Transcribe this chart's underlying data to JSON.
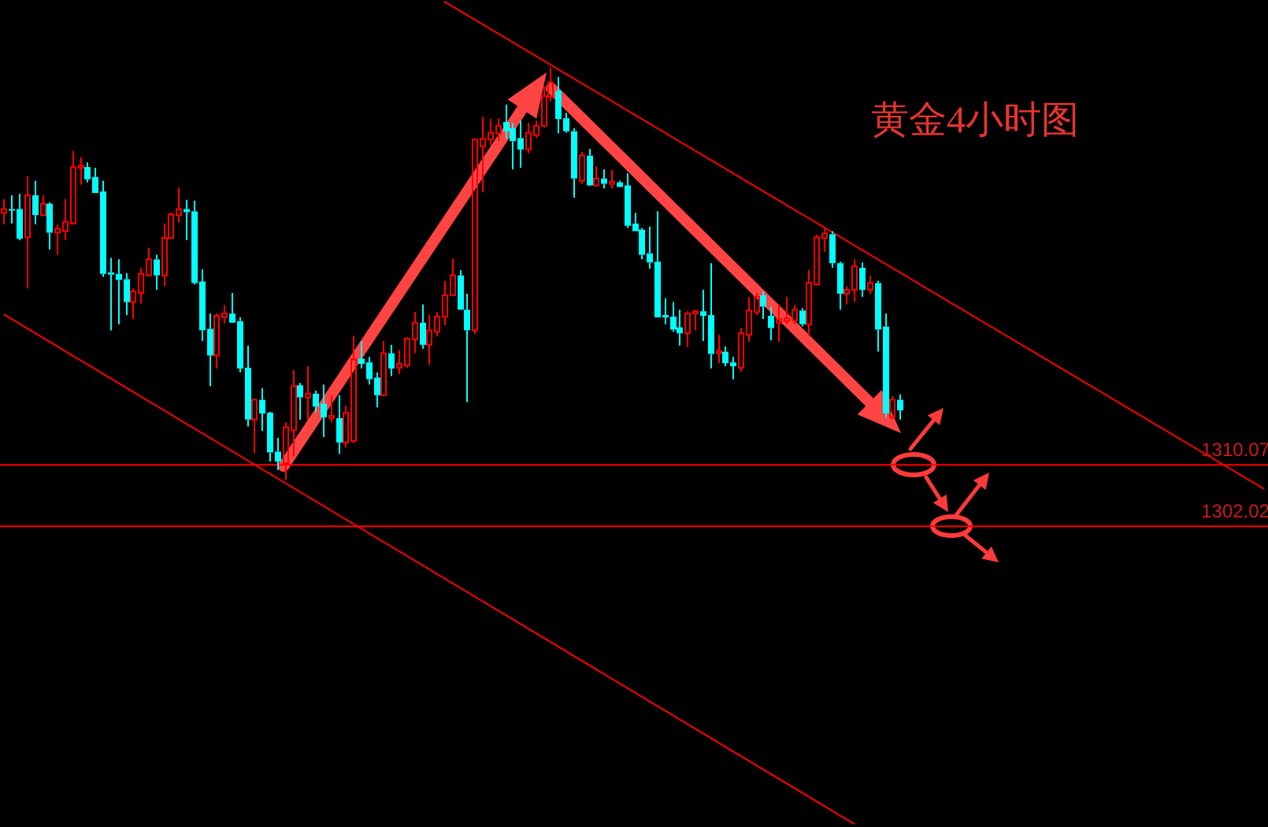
{
  "chart_data": {
    "type": "candlestick",
    "title": "黄金4小时图",
    "categories": [
      null,
      null,
      null,
      null,
      null,
      null,
      null,
      null,
      null,
      null,
      null,
      null,
      null,
      null,
      null,
      null,
      null,
      null,
      null,
      null,
      null,
      null,
      null,
      null,
      null,
      null,
      null,
      null,
      null,
      null,
      null,
      null,
      null,
      null,
      null,
      null,
      null,
      null,
      null,
      null,
      null,
      null,
      null,
      null,
      null,
      null,
      null,
      null,
      null,
      null,
      null,
      null,
      null,
      null,
      null,
      null,
      null,
      null,
      null,
      null,
      null,
      null,
      null,
      null,
      null,
      null,
      null,
      null,
      null,
      null,
      null,
      null,
      null,
      null,
      null,
      null,
      null,
      null,
      null,
      null,
      null,
      null,
      null,
      null,
      null,
      null,
      null,
      null,
      null,
      null,
      null,
      null,
      null,
      null,
      null,
      null,
      null,
      null,
      null,
      null,
      null,
      null,
      null,
      null,
      null,
      null,
      null,
      null,
      null,
      null,
      null,
      null,
      null,
      null,
      null,
      null,
      null,
      null,
      null,
      null,
      null,
      null,
      null,
      null,
      null,
      null,
      null,
      null,
      null,
      null,
      null,
      null,
      null,
      null,
      null,
      null,
      null,
      null,
      null,
      null,
      null,
      null,
      null,
      null,
      null,
      null,
      null,
      null,
      null,
      null,
      null,
      null,
      null,
      null,
      null,
      null,
      null,
      null,
      null,
      null,
      null,
      null,
      null,
      null,
      null,
      null,
      null
    ],
    "ohlc": [
      [
        1343.1,
        1344.9,
        1341.6,
        1343.6
      ],
      [
        1343.6,
        1345.4,
        1341.7,
        1343.5
      ],
      [
        1343.6,
        1345.6,
        1339.5,
        1339.7
      ],
      [
        1339.9,
        1347.9,
        1333.2,
        1345.4
      ],
      [
        1345.4,
        1347.3,
        1341.6,
        1342.8
      ],
      [
        1342.8,
        1345.4,
        1342.8,
        1344.3
      ],
      [
        1344.3,
        1344.5,
        1338.3,
        1340.5
      ],
      [
        1340.5,
        1341.6,
        1337.6,
        1341.0
      ],
      [
        1340.7,
        1344.9,
        1339.5,
        1341.9
      ],
      [
        1341.7,
        1351.2,
        1341.6,
        1349.1
      ],
      [
        1349.0,
        1350.4,
        1346.8,
        1349.3
      ],
      [
        1349.1,
        1349.7,
        1347.1,
        1347.5
      ],
      [
        1347.8,
        1349.0,
        1345.7,
        1345.7
      ],
      [
        1345.9,
        1347.3,
        1334.7,
        1335.1
      ],
      [
        1335.3,
        1337.2,
        1327.7,
        1335.0
      ],
      [
        1335.1,
        1337.0,
        1328.5,
        1334.3
      ],
      [
        1334.4,
        1335.2,
        1329.7,
        1331.4
      ],
      [
        1331.4,
        1333.2,
        1329.2,
        1332.8
      ],
      [
        1332.6,
        1335.9,
        1331.2,
        1335.1
      ],
      [
        1334.9,
        1338.5,
        1334.9,
        1337.0
      ],
      [
        1337.0,
        1337.6,
        1333.0,
        1334.9
      ],
      [
        1334.9,
        1341.7,
        1333.5,
        1339.8
      ],
      [
        1339.8,
        1343.1,
        1339.7,
        1342.9
      ],
      [
        1342.8,
        1346.4,
        1341.8,
        1343.6
      ],
      [
        1343.6,
        1344.8,
        1339.5,
        1343.2
      ],
      [
        1343.3,
        1344.7,
        1333.7,
        1333.9
      ],
      [
        1334.1,
        1335.7,
        1326.3,
        1327.7
      ],
      [
        1327.9,
        1329.9,
        1320.4,
        1324.4
      ],
      [
        1324.4,
        1329.9,
        1322.7,
        1329.6
      ],
      [
        1329.4,
        1331.0,
        1328.6,
        1329.9
      ],
      [
        1329.9,
        1332.6,
        1328.7,
        1328.7
      ],
      [
        1328.9,
        1329.4,
        1322.2,
        1322.7
      ],
      [
        1322.8,
        1325.7,
        1315.1,
        1316.0
      ],
      [
        1316.0,
        1318.7,
        1311.6,
        1318.6
      ],
      [
        1318.6,
        1320.1,
        1314.5,
        1316.8
      ],
      [
        1316.9,
        1317.0,
        1310.5,
        1311.7
      ],
      [
        1311.8,
        1313.6,
        1309.4,
        1310.5
      ],
      [
        1310.3,
        1315.6,
        1308.1,
        1315.0
      ],
      [
        1314.6,
        1322.5,
        1311.2,
        1320.4
      ],
      [
        1320.5,
        1320.8,
        1316.0,
        1318.9
      ],
      [
        1318.9,
        1323.0,
        1316.0,
        1319.4
      ],
      [
        1319.4,
        1319.8,
        1317.0,
        1317.7
      ],
      [
        1318.1,
        1320.6,
        1313.7,
        1316.3
      ],
      [
        1316.2,
        1319.1,
        1315.6,
        1316.5
      ],
      [
        1316.2,
        1319.2,
        1311.5,
        1313.0
      ],
      [
        1313.0,
        1317.8,
        1312.3,
        1316.9
      ],
      [
        1313.2,
        1327.0,
        1312.9,
        1323.9
      ],
      [
        1324.0,
        1326.3,
        1322.7,
        1323.3
      ],
      [
        1323.5,
        1324.2,
        1320.6,
        1321.3
      ],
      [
        1321.5,
        1322.2,
        1317.6,
        1319.2
      ],
      [
        1319.2,
        1326.3,
        1319.1,
        1324.7
      ],
      [
        1324.7,
        1325.8,
        1321.7,
        1322.7
      ],
      [
        1322.8,
        1325.1,
        1322.0,
        1323.3
      ],
      [
        1323.1,
        1326.8,
        1322.8,
        1326.6
      ],
      [
        1326.5,
        1330.1,
        1324.7,
        1328.7
      ],
      [
        1328.7,
        1331.1,
        1325.3,
        1325.8
      ],
      [
        1325.8,
        1329.7,
        1323.2,
        1327.7
      ],
      [
        1327.5,
        1330.1,
        1326.9,
        1329.5
      ],
      [
        1329.5,
        1334.2,
        1328.4,
        1332.3
      ],
      [
        1332.3,
        1337.1,
        1332.3,
        1334.9
      ],
      [
        1334.9,
        1335.6,
        1330.4,
        1330.4
      ],
      [
        1330.4,
        1332.5,
        1318.3,
        1327.7
      ],
      [
        1327.7,
        1352.8,
        1327.2,
        1352.7
      ],
      [
        1351.8,
        1355.7,
        1345.8,
        1352.8
      ],
      [
        1352.7,
        1355.4,
        1352.0,
        1353.6
      ],
      [
        1353.5,
        1355.5,
        1352.5,
        1354.5
      ],
      [
        1355.0,
        1357.3,
        1352.8,
        1353.8
      ],
      [
        1354.2,
        1354.9,
        1348.8,
        1352.5
      ],
      [
        1352.9,
        1355.2,
        1349.0,
        1351.4
      ],
      [
        1351.4,
        1354.9,
        1350.9,
        1353.6
      ],
      [
        1353.3,
        1355.2,
        1352.9,
        1354.5
      ],
      [
        1354.5,
        1359.7,
        1354.3,
        1358.4
      ],
      [
        1358.3,
        1362.1,
        1357.7,
        1360.2
      ],
      [
        1359.1,
        1360.9,
        1353.5,
        1355.4
      ],
      [
        1355.5,
        1356.2,
        1353.6,
        1353.8
      ],
      [
        1353.8,
        1354.2,
        1345.1,
        1347.6
      ],
      [
        1347.3,
        1351.1,
        1346.9,
        1350.6
      ],
      [
        1350.6,
        1351.5,
        1346.6,
        1346.7
      ],
      [
        1346.7,
        1349.2,
        1346.7,
        1347.6
      ],
      [
        1347.6,
        1348.8,
        1346.3,
        1346.9
      ],
      [
        1346.9,
        1348.7,
        1346.3,
        1347.2
      ],
      [
        1347.1,
        1347.3,
        1346.5,
        1346.5
      ],
      [
        1346.7,
        1348.3,
        1341.1,
        1341.4
      ],
      [
        1341.7,
        1343.1,
        1340.7,
        1340.7
      ],
      [
        1340.9,
        1341.1,
        1337.0,
        1337.6
      ],
      [
        1337.8,
        1341.3,
        1335.8,
        1336.6
      ],
      [
        1336.7,
        1343.3,
        1329.4,
        1329.4
      ],
      [
        1329.7,
        1331.9,
        1328.5,
        1329.4
      ],
      [
        1329.5,
        1331.4,
        1327.5,
        1327.8
      ],
      [
        1328.1,
        1330.4,
        1325.7,
        1327.3
      ],
      [
        1327.3,
        1330.2,
        1325.5,
        1329.9
      ],
      [
        1329.9,
        1330.4,
        1327.7,
        1330.2
      ],
      [
        1330.2,
        1333.0,
        1326.3,
        1329.6
      ],
      [
        1329.7,
        1336.5,
        1322.7,
        1324.6
      ],
      [
        1324.7,
        1327.1,
        1323.4,
        1325.0
      ],
      [
        1324.9,
        1325.6,
        1323.0,
        1323.4
      ],
      [
        1323.5,
        1324.2,
        1321.3,
        1323.0
      ],
      [
        1322.8,
        1328.0,
        1322.3,
        1327.3
      ],
      [
        1327.1,
        1332.1,
        1326.2,
        1330.3
      ],
      [
        1330.1,
        1332.6,
        1329.7,
        1332.1
      ],
      [
        1332.3,
        1332.8,
        1329.2,
        1330.8
      ],
      [
        1329.6,
        1330.8,
        1326.4,
        1328.0
      ],
      [
        1328.7,
        1331.1,
        1326.2,
        1329.2
      ],
      [
        1328.9,
        1332.1,
        1328.5,
        1329.3
      ],
      [
        1329.0,
        1331.0,
        1328.5,
        1330.4
      ],
      [
        1330.3,
        1330.6,
        1328.2,
        1328.5
      ],
      [
        1328.5,
        1335.6,
        1327.0,
        1333.9
      ],
      [
        1333.7,
        1340.2,
        1333.7,
        1339.9
      ],
      [
        1339.8,
        1341.1,
        1338.0,
        1340.4
      ],
      [
        1340.3,
        1340.7,
        1335.9,
        1336.5
      ],
      [
        1336.5,
        1336.7,
        1330.4,
        1332.5
      ],
      [
        1332.5,
        1333.5,
        1331.1,
        1333.0
      ],
      [
        1333.0,
        1337.0,
        1331.4,
        1336.1
      ],
      [
        1335.9,
        1336.6,
        1332.1,
        1333.0
      ],
      [
        1333.0,
        1334.9,
        1332.5,
        1333.9
      ],
      [
        1333.9,
        1334.2,
        1324.9,
        1327.8
      ],
      [
        1328.2,
        1329.9,
        1316.3,
        1316.8
      ],
      [
        1316.3,
        1319.1,
        1316.0,
        1318.6
      ],
      [
        1318.6,
        1319.3,
        1316.0,
        1317.2
      ],
      null,
      null,
      null,
      null,
      null,
      null,
      null,
      null,
      null,
      null,
      null,
      null,
      null,
      null,
      null,
      null,
      null,
      null,
      null,
      null,
      null,
      null,
      null,
      null,
      null,
      null,
      null,
      null,
      null,
      null,
      null,
      null,
      null,
      null,
      null,
      null,
      null,
      null,
      null,
      null,
      null,
      null,
      null,
      null,
      null,
      null,
      null,
      null
    ],
    "colors": [
      "#ff0000",
      "#00ffff",
      "#00ffff",
      "#ff0000",
      "#00ffff",
      "#ff0000",
      "#00ffff",
      "#ff0000",
      "#ff0000",
      "#ff0000",
      "#ff0000",
      "#00ffff",
      "#00ffff",
      "#00ffff",
      "#00ffff",
      "#00ffff",
      "#00ffff",
      "#ff0000",
      "#ff0000",
      "#ff0000",
      "#00ffff",
      "#ff0000",
      "#ff0000",
      "#ff0000",
      "#00ffff",
      "#00ffff",
      "#00ffff",
      "#00ffff",
      "#ff0000",
      "#ff0000",
      "#00ffff",
      "#00ffff",
      "#00ffff",
      "#ff0000",
      "#00ffff",
      "#00ffff",
      "#00ffff",
      "#ff0000",
      "#ff0000",
      "#00ffff",
      "#ff0000",
      "#00ffff",
      "#00ffff",
      "#ff0000",
      "#00ffff",
      "#ff0000",
      "#ff0000",
      "#00ffff",
      "#00ffff",
      "#00ffff",
      "#ff0000",
      "#00ffff",
      "#ff0000",
      "#ff0000",
      "#ff0000",
      "#00ffff",
      "#ff0000",
      "#ff0000",
      "#ff0000",
      "#ff0000",
      "#00ffff",
      "#00ffff",
      "#ff0000",
      "#ff0000",
      "#ff0000",
      "#ff0000",
      "#00ffff",
      "#00ffff",
      "#00ffff",
      "#ff0000",
      "#ff0000",
      "#ff0000",
      "#ff0000",
      "#00ffff",
      "#00ffff",
      "#00ffff",
      "#ff0000",
      "#00ffff",
      "#ff0000",
      "#00ffff",
      "#ff0000",
      "#00ffff",
      "#00ffff",
      "#00ffff",
      "#00ffff",
      "#00ffff",
      "#00ffff",
      "#00ffff",
      "#00ffff",
      "#00ffff",
      "#ff0000",
      "#ff0000",
      "#00ffff",
      "#00ffff",
      "#ff0000",
      "#00ffff",
      "#00ffff",
      "#ff0000",
      "#ff0000",
      "#ff0000",
      "#00ffff",
      "#00ffff",
      "#ff0000",
      "#ff0000",
      "#ff0000",
      "#00ffff",
      "#ff0000",
      "#ff0000",
      "#ff0000",
      "#00ffff",
      "#00ffff",
      "#ff0000",
      "#ff0000",
      "#00ffff",
      "#ff0000",
      "#00ffff",
      "#00ffff",
      "#ff0000",
      "#00ffff",
      null,
      null,
      null,
      null,
      null,
      null,
      null,
      null,
      null,
      null,
      null,
      null,
      null,
      null,
      null,
      null,
      null,
      null,
      null,
      null,
      null,
      null,
      null,
      null,
      null,
      null,
      null,
      null,
      null,
      null,
      null,
      null,
      null,
      null,
      null,
      null,
      null,
      null,
      null,
      null,
      null,
      null,
      null,
      null,
      null,
      null,
      null,
      null
    ],
    "series": [
      {
        "type": "line",
        "color": "#ff0000",
        "values": [
          null,
          null,
          null,
          null,
          null,
          null,
          null,
          null,
          null,
          null,
          null,
          null,
          null,
          null,
          null,
          null,
          null,
          null,
          null,
          null,
          null,
          null,
          null,
          null,
          null,
          null,
          null,
          null,
          null,
          null,
          null,
          null,
          null,
          null,
          null,
          null,
          null,
          null,
          null,
          null,
          null,
          null,
          null,
          null,
          null,
          null,
          null,
          null,
          null,
          null,
          null,
          null,
          null,
          null,
          null,
          null,
          null,
          null,
          1370.8,
          null,
          null,
          null,
          null,
          null,
          null,
          null,
          null,
          null,
          null,
          null,
          null,
          null,
          null,
          null,
          null,
          null,
          null,
          null,
          null,
          null,
          null,
          null,
          null,
          null,
          null,
          null,
          null,
          null,
          null,
          null,
          null,
          null,
          null,
          null,
          null,
          null,
          null,
          null,
          null,
          null,
          null,
          null,
          null,
          null,
          null,
          null,
          null,
          null,
          null,
          null,
          null,
          null,
          null,
          null,
          null,
          null,
          null,
          null,
          null,
          null,
          null,
          null,
          null,
          null,
          null,
          null,
          null,
          null,
          null,
          null,
          null,
          null,
          null,
          null,
          null,
          null,
          null,
          null,
          null,
          null,
          null,
          null,
          null,
          null,
          null,
          null,
          null,
          null,
          null,
          null,
          null,
          null,
          null,
          null,
          null,
          null,
          null,
          null,
          null,
          null,
          null,
          null,
          null,
          null,
          null,
          null,
          1306.9
        ]
      },
      {
        "type": "line",
        "color": "#ff0000",
        "values": [
          1329.8,
          null,
          null,
          null,
          null,
          null,
          null,
          null,
          null,
          null,
          null,
          null,
          null,
          null,
          null,
          null,
          null,
          null,
          null,
          null,
          null,
          null,
          null,
          null,
          null,
          null,
          null,
          null,
          null,
          null,
          null,
          null,
          null,
          null,
          null,
          null,
          null,
          null,
          null,
          null,
          null,
          null,
          null,
          null,
          null,
          null,
          null,
          null,
          null,
          null,
          null,
          null,
          null,
          null,
          null,
          null,
          null,
          null,
          null,
          null,
          null,
          null,
          null,
          null,
          null,
          null,
          null,
          null,
          null,
          null,
          null,
          null,
          null,
          null,
          null,
          null,
          null,
          null,
          null,
          null,
          null,
          null,
          null,
          null,
          null,
          null,
          null,
          null,
          null,
          null,
          null,
          null,
          null,
          null,
          null,
          null,
          null,
          null,
          null,
          null,
          null,
          null,
          null,
          null,
          null,
          null,
          null,
          null,
          null,
          null,
          null,
          null,
          1263.0,
          null,
          null,
          null,
          null,
          null,
          null,
          null,
          null,
          null,
          null,
          null,
          null,
          null,
          null,
          null,
          null,
          null,
          null,
          null,
          null,
          null,
          null,
          null,
          null,
          null,
          null,
          null,
          null,
          null,
          null,
          null,
          null,
          null,
          null,
          null,
          null,
          null,
          null,
          null,
          null,
          null,
          null,
          null,
          null,
          null,
          null,
          null,
          null,
          null,
          null,
          null,
          null,
          null,
          null
        ]
      }
    ],
    "ylim": [
      1262.6,
      1371.0
    ],
    "yticks": [
      1310.07,
      1302.02
    ],
    "tick_labels": "y",
    "ref_lines": [
      {
        "axis": "y",
        "value": 1310.07,
        "color": "#ff0000"
      },
      {
        "axis": "y",
        "value": 1302.02,
        "color": "#ff0000"
      }
    ]
  }
}
